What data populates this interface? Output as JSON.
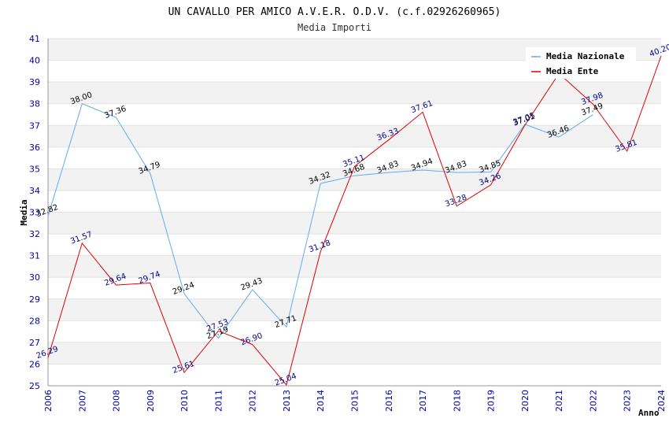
{
  "chart_data": {
    "type": "line",
    "title": "UN CAVALLO PER AMICO A.V.E.R. O.D.V. (c.f.02926260965)",
    "subtitle": "Media Importi",
    "xlabel": "Anno",
    "ylabel": "Media",
    "ylim": [
      25,
      41
    ],
    "yticks": [
      "25",
      "26",
      "27",
      "28",
      "29",
      "30",
      "31",
      "32",
      "33",
      "34",
      "35",
      "36",
      "37",
      "38",
      "39",
      "40",
      "41"
    ],
    "categories": [
      "2006",
      "2007",
      "2008",
      "2009",
      "2010",
      "2011",
      "2012",
      "2013",
      "2014",
      "2015",
      "2016",
      "2017",
      "2018",
      "2019",
      "2020",
      "2021",
      "2022",
      "2023",
      "2024"
    ],
    "grid": "horizontal, alternating bands",
    "legend_position": "top-right",
    "series": [
      {
        "name": "Media Nazionale",
        "color": "#66aaee",
        "label_color": "#000000",
        "values": [
          32.82,
          38.0,
          37.36,
          34.79,
          29.24,
          27.19,
          29.43,
          27.71,
          34.32,
          34.68,
          34.83,
          34.94,
          34.83,
          34.85,
          37.05,
          36.46,
          37.49,
          null,
          null
        ],
        "labels": [
          "32.82",
          "38.00",
          "37.36",
          "34.79",
          "29.24",
          "27.19",
          "29.43",
          "27.71",
          "34.32",
          "34.68",
          "34.83",
          "34.94",
          "34.83",
          "34.85",
          "37.05",
          "36.46",
          "37.49",
          "",
          ""
        ]
      },
      {
        "name": "Media Ente",
        "color": "#dd0000",
        "label_color": "#000088",
        "values": [
          26.29,
          31.57,
          29.64,
          29.74,
          25.61,
          27.53,
          26.9,
          25.04,
          31.18,
          35.11,
          36.33,
          37.61,
          33.28,
          34.26,
          37.01,
          39.39,
          37.98,
          35.81,
          40.2
        ],
        "labels": [
          "26.29",
          "31.57",
          "29.64",
          "29.74",
          "25.61",
          "27.53",
          "26.90",
          "25.04",
          "31.18",
          "35.11",
          "36.33",
          "37.61",
          "33.28",
          "34.26",
          "37.01",
          "",
          "37.98",
          "35.81",
          "40.20"
        ]
      }
    ]
  }
}
